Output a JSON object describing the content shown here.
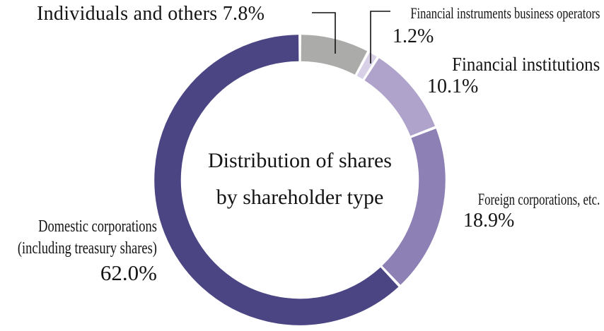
{
  "title": {
    "line1": "Distribution of shares",
    "line2": "by shareholder type"
  },
  "chart_data": {
    "type": "pie",
    "subtype": "donut",
    "title": "Distribution of shares by shareholder type",
    "units": "percent",
    "total": 100,
    "start_angle_deg": 0,
    "direction": "clockwise",
    "gap_between_segments_deg": 1.1,
    "segments": [
      {
        "id": "individuals",
        "label": "Individuals and others",
        "value": 7.8,
        "display": "7.8%",
        "color": "#ABABA9"
      },
      {
        "id": "financial-instruments",
        "label": "Financial instruments business operators",
        "value": 1.2,
        "display": "1.2%",
        "color": "#D8D0E6"
      },
      {
        "id": "financial-institutions",
        "label": "Financial institutions",
        "value": 10.1,
        "display": "10.1%",
        "color": "#AFA3CB"
      },
      {
        "id": "foreign-corporations",
        "label": "Foreign corporations, etc.",
        "value": 18.9,
        "display": "18.9%",
        "color": "#8C80B4"
      },
      {
        "id": "domestic-corporations",
        "label": "Domestic corporations (including treasury shares)",
        "value": 62.0,
        "display": "62.0%",
        "color": "#4B4583"
      }
    ]
  },
  "callouts": {
    "individuals": {
      "text": "Individuals and others 7.8%"
    },
    "financial_instruments": {
      "name": "Financial instruments business operators",
      "pct": "1.2%"
    },
    "financial_institutions": {
      "name": "Financial institutions",
      "pct": "10.1%"
    },
    "foreign": {
      "name": "Foreign corporations, etc.",
      "pct": "18.9%"
    },
    "domestic": {
      "name_line1": "Domestic corporations",
      "name_line2": "(including treasury shares)",
      "pct": "62.0%"
    }
  }
}
